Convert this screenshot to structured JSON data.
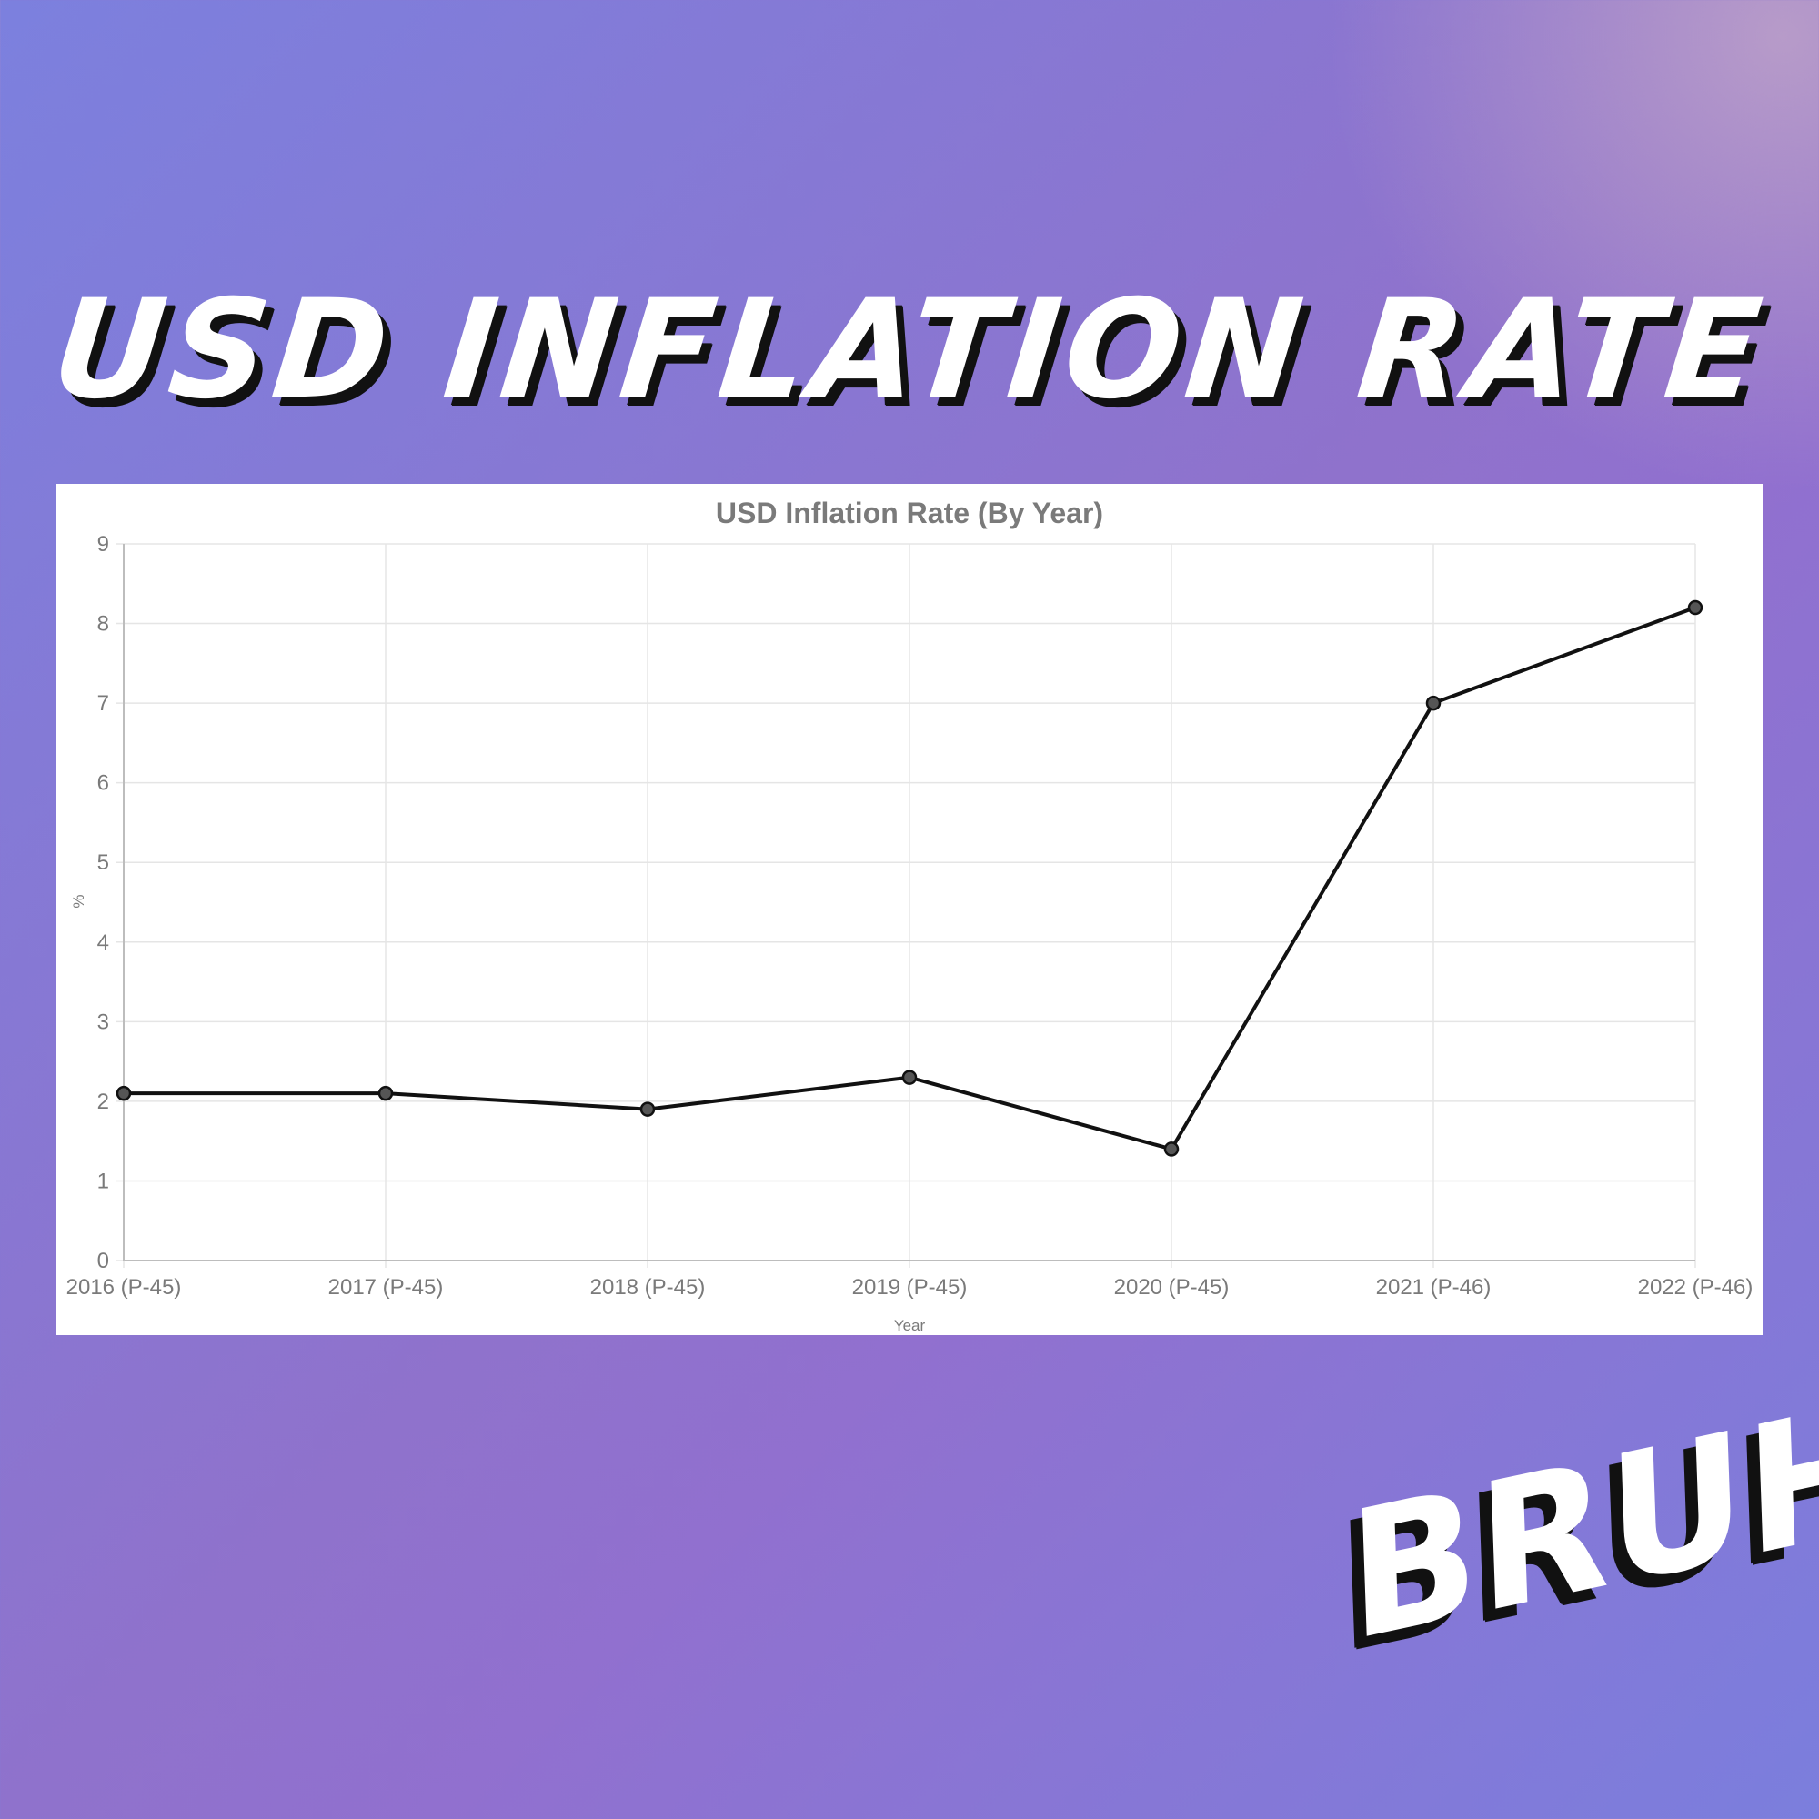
{
  "headline": "USD INFLATION RATE",
  "sticker": "BRUH!",
  "chart_data": {
    "type": "line",
    "title": "USD Inflation Rate (By Year)",
    "xlabel": "Year",
    "ylabel": "%",
    "categories": [
      "2016 (P-45)",
      "2017 (P-45)",
      "2018 (P-45)",
      "2019 (P-45)",
      "2020 (P-45)",
      "2021 (P-46)",
      "2022 (P-46)"
    ],
    "series": [
      {
        "values": [
          2.1,
          2.1,
          1.9,
          2.3,
          1.4,
          7.0,
          8.2
        ]
      }
    ],
    "ylim": [
      0,
      9
    ],
    "yticks": [
      0,
      1,
      2,
      3,
      4,
      5,
      6,
      7,
      8,
      9
    ],
    "grid": true,
    "legend": "none",
    "colors": {
      "line": "#111111",
      "point_fill": "#555555",
      "grid": "#e5e5e5",
      "text": "#7a7a7a"
    }
  }
}
